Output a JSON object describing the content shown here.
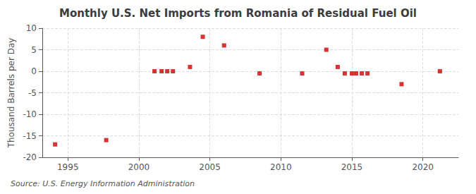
{
  "chart_data": {
    "type": "scatter",
    "title": "Monthly U.S. Net Imports from Romania of Residual Fuel Oil",
    "ylabel": "Thousand Barrels per Day",
    "source": "Source: U.S. Energy Information Administration",
    "x": [
      1994.1,
      1997.7,
      2001.1,
      2001.6,
      2002.0,
      2002.4,
      2003.6,
      2004.5,
      2006.0,
      2008.5,
      2011.5,
      2013.2,
      2014.0,
      2014.5,
      2015.0,
      2015.3,
      2015.7,
      2016.1,
      2018.5,
      2021.2
    ],
    "values": [
      -17.0,
      -16.0,
      0.0,
      0.0,
      0.0,
      0.0,
      1.0,
      8.0,
      6.0,
      -0.5,
      -0.5,
      5.0,
      1.0,
      -0.5,
      -0.5,
      -0.5,
      -0.5,
      -0.5,
      -3.0,
      0.0
    ],
    "color": "#cc0000",
    "marker": "square",
    "xlim": [
      1993.2,
      2022.5
    ],
    "xticks": [
      1995,
      2000,
      2005,
      2010,
      2015,
      2020
    ],
    "ylim": [
      -20,
      10
    ],
    "yticks": [
      -20,
      -15,
      -10,
      -5,
      0,
      5,
      10
    ],
    "grid": true
  }
}
